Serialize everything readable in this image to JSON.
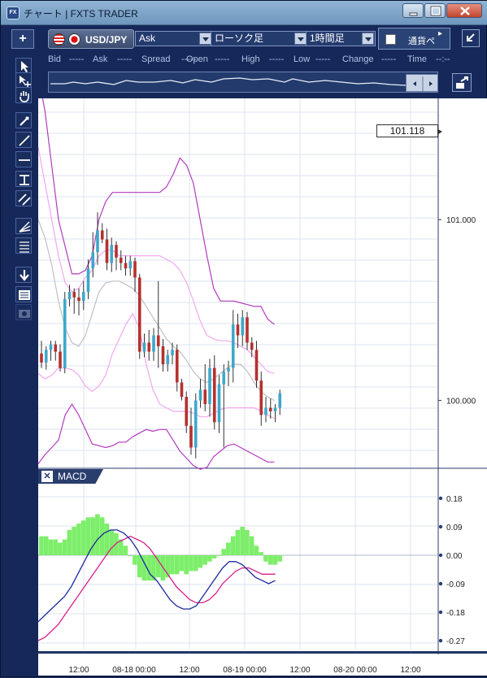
{
  "window": {
    "title": "チャート | FXTS TRADER",
    "icon": "FX"
  },
  "toolbar": {
    "add_label": "+",
    "symbol": "USD/JPY",
    "price_side": "Ask",
    "chart_type": "ローソク足",
    "timeframe": "1時間足",
    "compare_label": "通貨ペ",
    "compare_arrow": "▸"
  },
  "quote": {
    "bid_label": "Bid",
    "bid": "-----",
    "ask_label": "Ask",
    "ask": "-----",
    "spread_label": "Spread",
    "spread": "-----",
    "open_label": "Open",
    "open": "-----",
    "high_label": "High",
    "high": "-----",
    "low_label": "Low",
    "low": "-----",
    "change_label": "Change",
    "change": "-----",
    "time_label": "Time",
    "time": "--:--"
  },
  "price_tag": "101.118",
  "macd_panel": {
    "close": "✕",
    "label": "MACD"
  },
  "chart_data": {
    "type": "candlestick",
    "price_axis": {
      "ticks": [
        "101.000",
        "100.000"
      ]
    },
    "macd_axis": {
      "ticks": [
        "0.18",
        "0.09",
        "0.00",
        "-0.09",
        "-0.18",
        "-0.27"
      ]
    },
    "time_axis": {
      "ticks": [
        "12:00",
        "08-18 00:00",
        "12:00",
        "08-19 00:00",
        "12:00",
        "08-20 00:00",
        "12:00"
      ]
    },
    "ylim": [
      99.63,
      101.67
    ],
    "candles": [
      [
        100.26,
        100.33,
        100.18,
        100.21
      ],
      [
        100.21,
        100.3,
        100.17,
        100.28
      ],
      [
        100.28,
        100.33,
        100.22,
        100.31
      ],
      [
        100.31,
        100.33,
        100.22,
        100.27
      ],
      [
        100.27,
        100.31,
        100.16,
        100.18
      ],
      [
        100.18,
        100.6,
        100.15,
        100.56
      ],
      [
        100.56,
        100.64,
        100.52,
        100.6
      ],
      [
        100.6,
        100.62,
        100.48,
        100.57
      ],
      [
        100.57,
        100.62,
        100.47,
        100.55
      ],
      [
        100.55,
        100.66,
        100.5,
        100.6
      ],
      [
        100.6,
        100.78,
        100.56,
        100.73
      ],
      [
        100.73,
        100.93,
        100.68,
        100.82
      ],
      [
        100.82,
        101.04,
        100.75,
        100.94
      ],
      [
        100.94,
        100.98,
        100.87,
        100.89
      ],
      [
        100.89,
        100.95,
        100.72,
        100.76
      ],
      [
        100.76,
        100.9,
        100.71,
        100.86
      ],
      [
        100.86,
        100.88,
        100.72,
        100.79
      ],
      [
        100.79,
        100.83,
        100.72,
        100.76
      ],
      [
        100.76,
        100.8,
        100.69,
        100.73
      ],
      [
        100.73,
        100.8,
        100.69,
        100.77
      ],
      [
        100.77,
        100.79,
        100.6,
        100.68
      ],
      [
        100.68,
        100.7,
        100.23,
        100.27
      ],
      [
        100.27,
        100.37,
        100.24,
        100.32
      ],
      [
        100.32,
        100.39,
        100.22,
        100.27
      ],
      [
        100.27,
        100.4,
        100.22,
        100.36
      ],
      [
        100.36,
        100.66,
        100.18,
        100.3
      ],
      [
        100.3,
        100.34,
        100.16,
        100.2
      ],
      [
        100.2,
        100.28,
        100.16,
        100.25
      ],
      [
        100.25,
        100.32,
        100.2,
        100.28
      ],
      [
        100.28,
        100.31,
        100.05,
        100.1
      ],
      [
        100.1,
        100.12,
        100.0,
        100.02
      ],
      [
        100.02,
        100.05,
        99.82,
        99.86
      ],
      [
        99.86,
        99.96,
        99.7,
        99.74
      ],
      [
        99.74,
        100.04,
        99.68,
        100.0
      ],
      [
        100.0,
        100.12,
        99.96,
        100.06
      ],
      [
        100.06,
        100.2,
        99.94,
        99.98
      ],
      [
        99.98,
        100.23,
        99.91,
        100.18
      ],
      [
        100.18,
        100.25,
        99.84,
        99.88
      ],
      [
        99.88,
        100.14,
        99.82,
        100.09
      ],
      [
        100.09,
        100.2,
        99.74,
        100.16
      ],
      [
        100.16,
        100.22,
        100.08,
        100.18
      ],
      [
        100.18,
        100.5,
        100.1,
        100.42
      ],
      [
        100.42,
        100.48,
        100.29,
        100.36
      ],
      [
        100.36,
        100.5,
        100.3,
        100.46
      ],
      [
        100.46,
        100.49,
        100.28,
        100.32
      ],
      [
        100.32,
        100.35,
        100.24,
        100.28
      ],
      [
        100.28,
        100.33,
        100.07,
        100.11
      ],
      [
        100.11,
        100.16,
        99.86,
        99.92
      ],
      [
        99.92,
        100.02,
        99.88,
        99.96
      ],
      [
        99.96,
        100.01,
        99.9,
        99.94
      ],
      [
        99.94,
        99.98,
        99.88,
        99.96
      ],
      [
        99.96,
        100.06,
        99.92,
        100.04
      ]
    ],
    "macd_hist": [
      0.06,
      0.06,
      0.05,
      0.05,
      0.04,
      0.05,
      0.08,
      0.09,
      0.1,
      0.11,
      0.12,
      0.12,
      0.13,
      0.12,
      0.1,
      0.08,
      0.07,
      0.05,
      0.03,
      0.0,
      -0.03,
      -0.07,
      -0.08,
      -0.08,
      -0.08,
      -0.07,
      -0.08,
      -0.07,
      -0.06,
      -0.06,
      -0.05,
      -0.06,
      -0.05,
      -0.05,
      -0.04,
      -0.03,
      -0.02,
      -0.01,
      0.0,
      0.02,
      0.04,
      0.06,
      0.08,
      0.09,
      0.08,
      0.06,
      0.03,
      0.01,
      -0.02,
      -0.03,
      -0.03,
      -0.02
    ],
    "macd_line": [
      -0.21,
      -0.19,
      -0.17,
      -0.15,
      -0.13,
      -0.1,
      -0.06,
      -0.02,
      0.02,
      0.05,
      0.07,
      0.08,
      0.08,
      0.07,
      0.05,
      0.02,
      -0.02,
      -0.06,
      -0.08,
      -0.11,
      -0.14,
      -0.16,
      -0.17,
      -0.17,
      -0.16,
      -0.13,
      -0.1,
      -0.07,
      -0.04,
      -0.02,
      -0.02,
      -0.03,
      -0.05,
      -0.07,
      -0.08,
      -0.09,
      -0.08
    ],
    "signal_line": [
      -0.27,
      -0.26,
      -0.24,
      -0.22,
      -0.19,
      -0.16,
      -0.13,
      -0.1,
      -0.07,
      -0.04,
      -0.01,
      0.02,
      0.04,
      0.05,
      0.06,
      0.05,
      0.04,
      0.02,
      -0.01,
      -0.04,
      -0.07,
      -0.1,
      -0.12,
      -0.14,
      -0.15,
      -0.15,
      -0.14,
      -0.12,
      -0.09,
      -0.07,
      -0.05,
      -0.04,
      -0.04,
      -0.05,
      -0.06,
      -0.06,
      -0.06
    ],
    "bollinger": {
      "upper": [
        101.8,
        101.6,
        101.3,
        101.0,
        100.85,
        100.7,
        100.7,
        100.72,
        100.8,
        101.0,
        101.1,
        101.15,
        101.15,
        101.15,
        101.15,
        101.15,
        101.15,
        101.15,
        101.15,
        101.18,
        101.25,
        101.34,
        101.3,
        101.2,
        101.0,
        100.8,
        100.62,
        100.55,
        100.55,
        100.55,
        100.54,
        100.53,
        100.52,
        100.52,
        100.45,
        100.42
      ],
      "upper2": [
        101.4,
        101.2,
        101.0,
        100.8,
        100.65,
        100.6,
        100.62,
        100.68,
        100.72,
        100.8,
        100.83,
        100.83,
        100.8,
        100.8,
        100.8,
        100.8,
        100.8,
        100.8,
        100.8,
        100.78,
        100.76,
        100.72,
        100.65,
        100.55,
        100.44,
        100.36,
        100.34,
        100.33,
        100.33,
        100.32,
        100.3,
        100.28,
        100.24,
        100.2,
        100.16,
        100.15
      ],
      "middle": [
        101.0,
        100.9,
        100.75,
        100.55,
        100.4,
        100.32,
        100.3,
        100.36,
        100.48,
        100.6,
        100.65,
        100.66,
        100.66,
        100.64,
        100.62,
        100.58,
        100.52,
        100.46,
        100.4,
        100.34,
        100.3,
        100.27,
        100.22,
        100.16,
        100.12,
        100.1,
        100.12,
        100.15,
        100.18,
        100.2,
        100.2,
        100.16,
        100.1,
        100.05,
        100.02,
        100.0
      ],
      "lower2": [
        100.15,
        100.12,
        100.14,
        100.18,
        100.18,
        100.17,
        100.14,
        100.08,
        100.05,
        100.08,
        100.14,
        100.26,
        100.34,
        100.42,
        100.48,
        100.4,
        100.2,
        100.06,
        99.98,
        99.96,
        99.94,
        99.94,
        99.94,
        99.93,
        99.91,
        99.91,
        99.93,
        99.95,
        99.96,
        99.96,
        99.96,
        99.96,
        99.96,
        99.94,
        99.92,
        99.9
      ],
      "lower": [
        99.65,
        99.7,
        99.74,
        99.78,
        99.92,
        99.98,
        99.92,
        99.84,
        99.76,
        99.75,
        99.74,
        99.75,
        99.77,
        99.77,
        99.8,
        99.82,
        99.84,
        99.83,
        99.84,
        99.84,
        99.78,
        99.72,
        99.68,
        99.64,
        99.62,
        99.63,
        99.69,
        99.72,
        99.75,
        99.76,
        99.74,
        99.72,
        99.7,
        99.68,
        99.66,
        99.66
      ]
    }
  }
}
